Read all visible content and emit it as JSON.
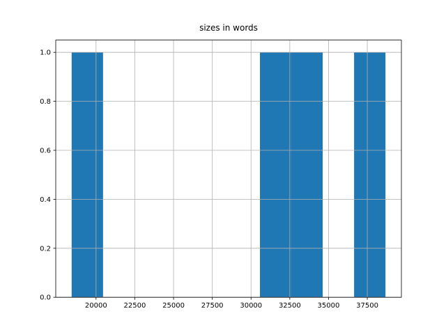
{
  "chart_data": {
    "type": "histogram",
    "title": "sizes in words",
    "bins": [
      18425,
      20450,
      22475,
      24500,
      26524,
      28549,
      30574,
      32598,
      34623,
      36648,
      38672
    ],
    "counts": [
      1,
      0,
      0,
      0,
      0,
      0,
      1,
      1,
      0,
      1
    ],
    "color": "#1f77b4",
    "xlim": [
      17400,
      39700
    ],
    "xticks": [
      20000,
      22500,
      25000,
      27500,
      30000,
      32500,
      35000,
      37500
    ],
    "ylim": [
      0,
      1.05
    ],
    "yticks": [
      {
        "value": 0,
        "label": "0.0"
      },
      {
        "value": 0.2,
        "label": "0.2"
      },
      {
        "value": 0.4,
        "label": "0.4"
      },
      {
        "value": 0.6,
        "label": "0.6"
      },
      {
        "value": 0.8,
        "label": "0.8"
      },
      {
        "value": 1.0,
        "label": "1.0"
      }
    ],
    "grid": true
  }
}
